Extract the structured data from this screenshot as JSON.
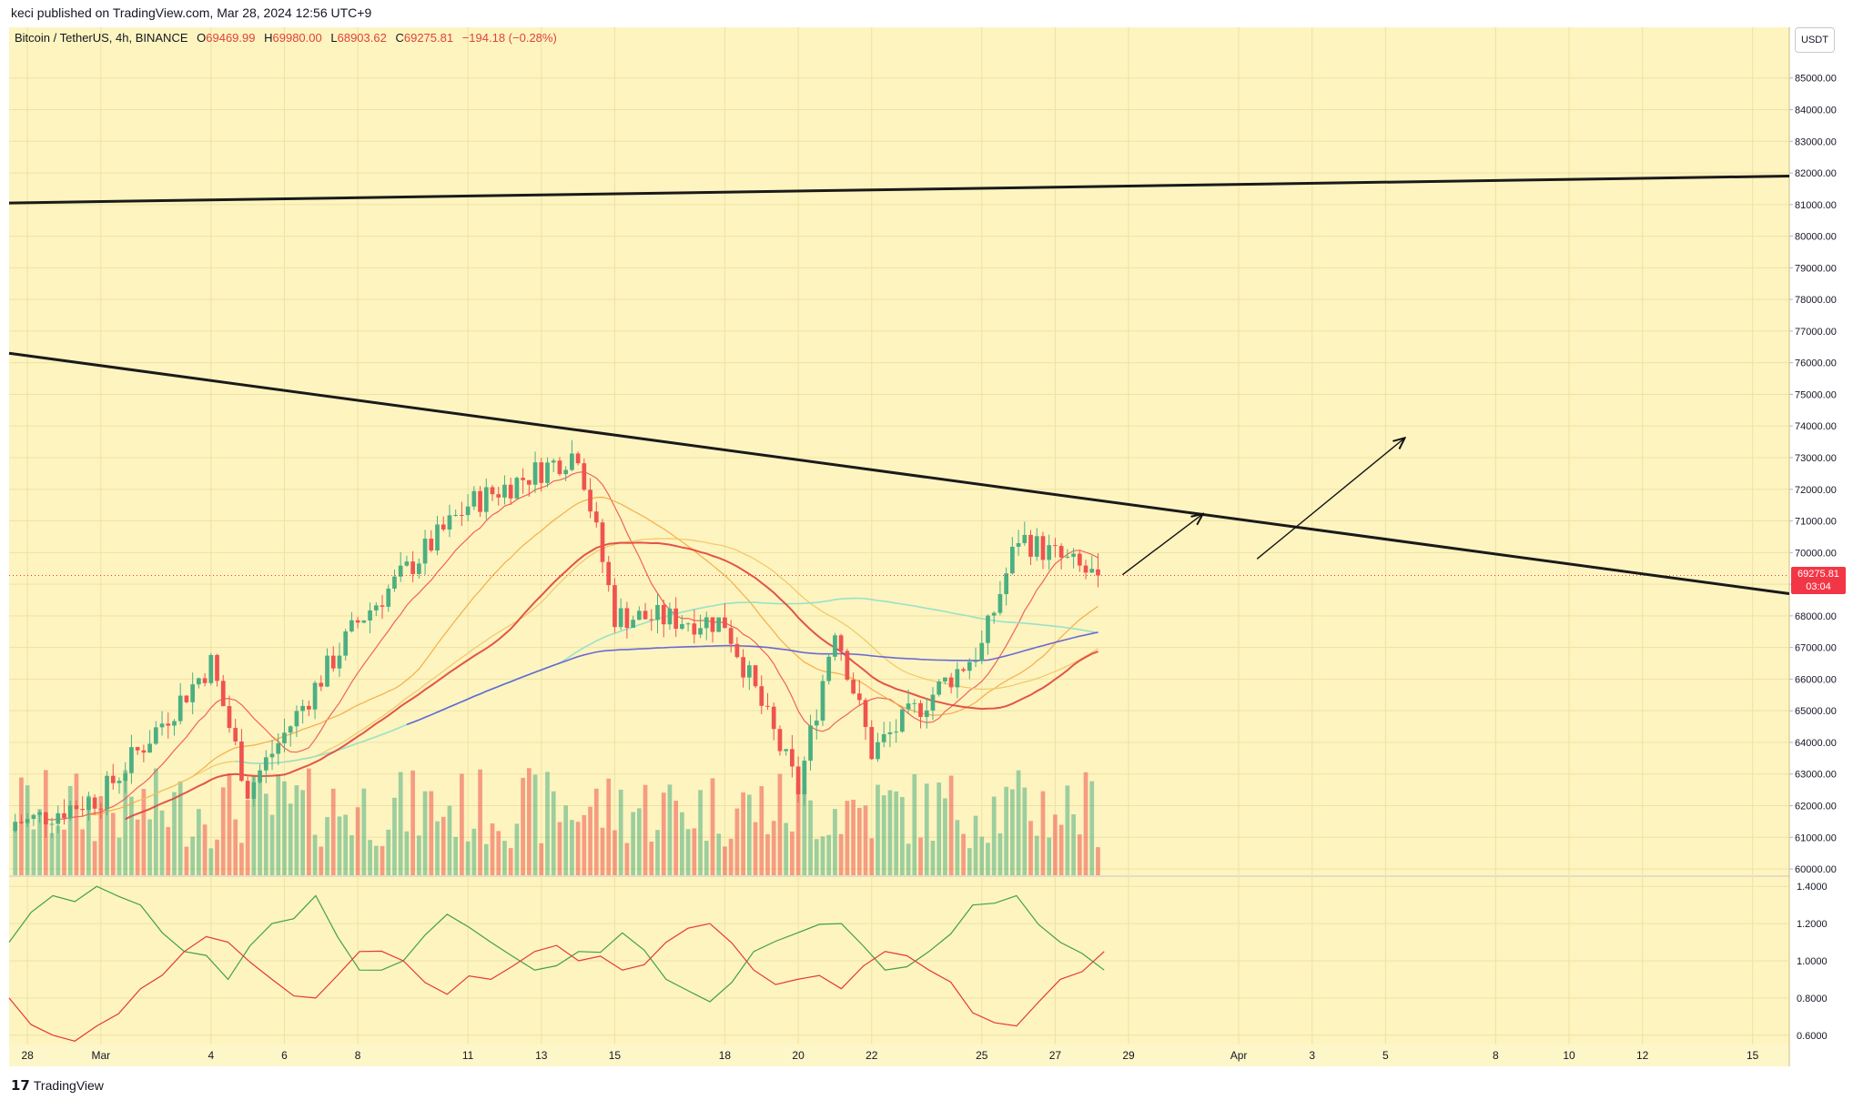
{
  "header": {
    "published_text": "keci published on TradingView.com, Mar 28, 2024 12:56 UTC+9"
  },
  "legend": {
    "symbol": "Bitcoin / TetherUS, 4h, BINANCE",
    "open_label": "O",
    "open": "69469.99",
    "high_label": "H",
    "high": "69980.00",
    "low_label": "L",
    "low": "68903.62",
    "close_label": "C",
    "close": "69275.81",
    "change": "−194.18 (−0.28%)"
  },
  "price_axis": {
    "unit": "USDT",
    "current_price": "69275.81",
    "countdown": "03:04"
  },
  "footer": {
    "brand": "TradingView"
  },
  "colors": {
    "background": "#fdf4c0",
    "grid": "#eee2a2",
    "up": "#4caf82",
    "down": "#ef5350",
    "trendline": "#1a1a1a"
  },
  "chart_data": [
    {
      "type": "candlestick",
      "title": "Bitcoin / TetherUS, 4h, BINANCE",
      "x_ticks": [
        "28",
        "Mar",
        "4",
        "6",
        "8",
        "11",
        "13",
        "15",
        "18",
        "20",
        "22",
        "25",
        "27",
        "29",
        "Apr",
        "3",
        "5",
        "8",
        "10",
        "12",
        "15"
      ],
      "y_ticks": [
        "60000.00",
        "61000.00",
        "62000.00",
        "63000.00",
        "64000.00",
        "65000.00",
        "66000.00",
        "67000.00",
        "68000.00",
        "69000.00",
        "70000.00",
        "71000.00",
        "72000.00",
        "73000.00",
        "74000.00",
        "75000.00",
        "76000.00",
        "77000.00",
        "78000.00",
        "79000.00",
        "80000.00",
        "81000.00",
        "82000.00",
        "83000.00",
        "84000.00",
        "85000.00"
      ],
      "ylim": [
        59800,
        86200
      ],
      "x_range": [
        "2024-02-27 12:00",
        "2024-04-16 00:00"
      ],
      "grid": true,
      "key_points": [
        {
          "x": "2024-02-28",
          "close": 61500
        },
        {
          "x": "2024-03-01",
          "close": 62300
        },
        {
          "x": "2024-03-04",
          "close": 66500
        },
        {
          "x": "2024-03-05",
          "close": 62500
        },
        {
          "x": "2024-03-08",
          "close": 67800
        },
        {
          "x": "2024-03-11",
          "close": 71500
        },
        {
          "x": "2024-03-14",
          "close": 73200
        },
        {
          "x": "2024-03-15",
          "close": 68000
        },
        {
          "x": "2024-03-18",
          "close": 67800
        },
        {
          "x": "2024-03-20",
          "close": 62500
        },
        {
          "x": "2024-03-21",
          "close": 67700
        },
        {
          "x": "2024-03-22",
          "close": 63700
        },
        {
          "x": "2024-03-25",
          "close": 67000
        },
        {
          "x": "2024-03-26",
          "close": 70500
        },
        {
          "x": "2024-03-28",
          "close": 69275.81
        }
      ],
      "trendlines": [
        {
          "name": "",
          "from": {
            "x": "2024-02-27 12:00",
            "y": 81050
          },
          "to": {
            "x": "2024-04-16 00:00",
            "y": 81900
          }
        },
        {
          "name": "",
          "from": {
            "x": "2024-02-27 12:00",
            "y": 76300
          },
          "to": {
            "x": "2024-04-16 00:00",
            "y": 68700
          }
        }
      ],
      "arrows": [
        {
          "from": {
            "x": "2024-03-28 20:00",
            "y": 69300
          },
          "to": {
            "x": "2024-03-31 00:00",
            "y": 71200
          }
        },
        {
          "from": {
            "x": "2024-04-01 12:00",
            "y": 69800
          },
          "to": {
            "x": "2024-04-05 12:00",
            "y": 73600
          }
        }
      ]
    },
    {
      "type": "line",
      "y_ticks": [
        "0.6000",
        "0.8000",
        "1.0000",
        "1.2000",
        "1.4000"
      ],
      "ylim": [
        0.55,
        1.45
      ],
      "series": [
        {
          "color": "#43a047",
          "values": [
            1.1,
            1.35,
            1.4,
            1.3,
            1.05,
            0.9,
            1.2,
            1.35,
            0.95,
            1.0,
            1.25,
            1.1,
            0.95,
            1.05,
            1.15,
            0.9,
            0.78,
            1.05,
            1.15,
            1.2,
            0.95,
            1.05,
            1.3,
            1.35,
            1.1,
            0.95
          ]
        },
        {
          "color": "#e53935",
          "values": [
            0.8,
            0.6,
            0.65,
            0.85,
            1.05,
            1.1,
            0.9,
            0.8,
            1.05,
            1.0,
            0.82,
            0.9,
            1.05,
            1.0,
            0.95,
            1.1,
            1.2,
            0.95,
            0.9,
            0.85,
            1.05,
            0.95,
            0.72,
            0.65,
            0.9,
            1.05
          ]
        }
      ]
    }
  ]
}
